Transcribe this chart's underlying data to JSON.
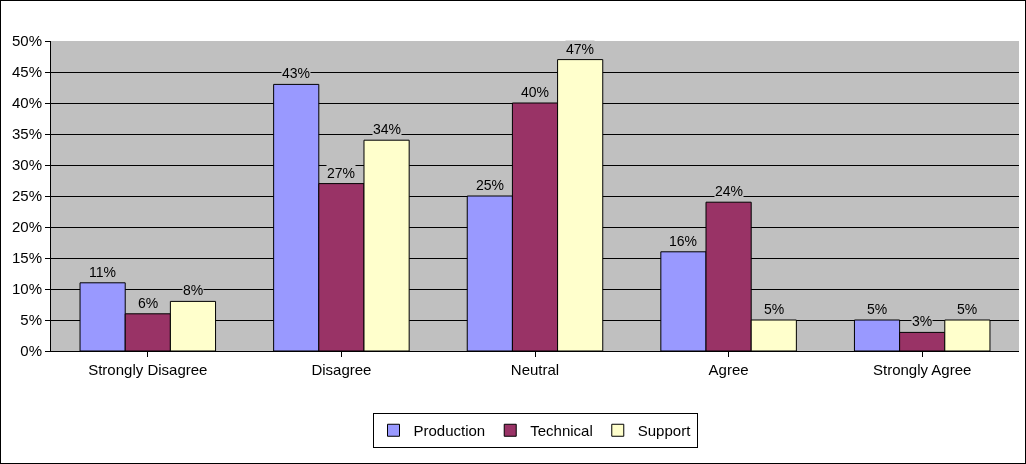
{
  "chart_data": {
    "type": "bar",
    "categories": [
      "Strongly Disagree",
      "Disagree",
      "Neutral",
      "Agree",
      "Strongly Agree"
    ],
    "series": [
      {
        "name": "Production",
        "color": "#9999ff",
        "values": [
          11,
          43,
          25,
          16,
          5
        ],
        "value_labels": [
          "11%",
          "43%",
          "25%",
          "16%",
          "5%"
        ]
      },
      {
        "name": "Technical",
        "color": "#993366",
        "values": [
          6,
          27,
          40,
          24,
          3
        ],
        "value_labels": [
          "6%",
          "27%",
          "40%",
          "24%",
          "3%"
        ]
      },
      {
        "name": "Support",
        "color": "#ffffcc",
        "values": [
          8,
          34,
          47,
          5,
          5
        ],
        "value_labels": [
          "8%",
          "34%",
          "47%",
          "5%",
          "5%"
        ]
      }
    ],
    "ylim": [
      0,
      50
    ],
    "yticks": [
      {
        "value": 0,
        "label": "0%"
      },
      {
        "value": 5,
        "label": "5%"
      },
      {
        "value": 10,
        "label": "10%"
      },
      {
        "value": 15,
        "label": "15%"
      },
      {
        "value": 20,
        "label": "20%"
      },
      {
        "value": 25,
        "label": "25%"
      },
      {
        "value": 30,
        "label": "30%"
      },
      {
        "value": 35,
        "label": "35%"
      },
      {
        "value": 40,
        "label": "40%"
      },
      {
        "value": 45,
        "label": "45%"
      },
      {
        "value": 50,
        "label": "50%"
      }
    ],
    "grid": "y",
    "legend": "bottom"
  }
}
